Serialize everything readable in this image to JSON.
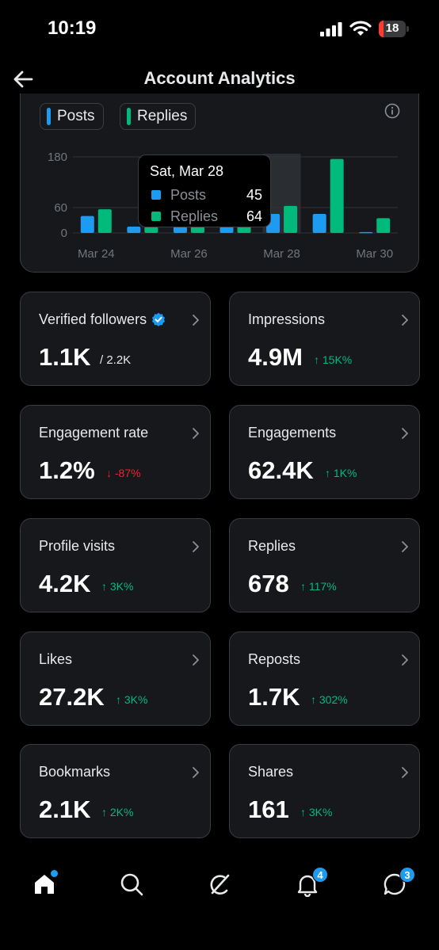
{
  "status_bar": {
    "time": "10:19",
    "battery_level": "18",
    "battery_percent": 18
  },
  "header": {
    "title": "Account Analytics"
  },
  "chart": {
    "legend": [
      {
        "label": "Posts",
        "color": "#1d9bf0"
      },
      {
        "label": "Replies",
        "color": "#00ba7c"
      }
    ],
    "tooltip": {
      "title": "Sat, Mar 28",
      "rows": [
        {
          "label": "Posts",
          "value": "45",
          "color": "#1d9bf0"
        },
        {
          "label": "Replies",
          "value": "64",
          "color": "#00ba7c"
        }
      ]
    }
  },
  "chart_data": {
    "type": "bar",
    "categories": [
      "Mar 24",
      "Mar 25",
      "Mar 26",
      "Mar 27",
      "Mar 28",
      "Mar 29",
      "Mar 30"
    ],
    "series": [
      {
        "name": "Posts",
        "values": [
          40,
          15,
          15,
          15,
          45,
          45,
          2
        ]
      },
      {
        "name": "Replies",
        "values": [
          56,
          15,
          15,
          15,
          64,
          175,
          35
        ]
      }
    ],
    "x_tick_labels": [
      "Mar 24",
      "Mar 26",
      "Mar 28",
      "Mar 30"
    ],
    "y_ticks": [
      0,
      60,
      180
    ],
    "ylim": [
      0,
      180
    ],
    "highlight_category": "Mar 28",
    "grid": true
  },
  "stats": [
    {
      "name": "verified-followers",
      "label": "Verified followers",
      "value": "1.1K",
      "sub": "/ 2.2K",
      "delta": "",
      "trend": "none",
      "verified": true
    },
    {
      "name": "impressions",
      "label": "Impressions",
      "value": "4.9M",
      "delta": "↑ 15K%",
      "trend": "up"
    },
    {
      "name": "engagement-rate",
      "label": "Engagement rate",
      "value": "1.2%",
      "delta": "↓ -87%",
      "trend": "down"
    },
    {
      "name": "engagements",
      "label": "Engagements",
      "value": "62.4K",
      "delta": "↑ 1K%",
      "trend": "up"
    },
    {
      "name": "profile-visits",
      "label": "Profile visits",
      "value": "4.2K",
      "delta": "↑ 3K%",
      "trend": "up"
    },
    {
      "name": "replies",
      "label": "Replies",
      "value": "678",
      "delta": "↑ 117%",
      "trend": "up"
    },
    {
      "name": "likes",
      "label": "Likes",
      "value": "27.2K",
      "delta": "↑ 3K%",
      "trend": "up"
    },
    {
      "name": "reposts",
      "label": "Reposts",
      "value": "1.7K",
      "delta": "↑ 302%",
      "trend": "up"
    },
    {
      "name": "bookmarks",
      "label": "Bookmarks",
      "value": "2.1K",
      "delta": "↑ 2K%",
      "trend": "up"
    },
    {
      "name": "shares",
      "label": "Shares",
      "value": "161",
      "delta": "↑ 3K%",
      "trend": "up"
    }
  ],
  "colors": {
    "up": "#00ba7c",
    "down": "#f4212e",
    "accent": "#1d9bf0"
  },
  "tab_bar": {
    "items": [
      {
        "icon": "home-icon",
        "badge": ""
      },
      {
        "icon": "search-icon",
        "badge": ""
      },
      {
        "icon": "grok-icon",
        "badge": ""
      },
      {
        "icon": "bell-icon",
        "badge": "4"
      },
      {
        "icon": "messages-icon",
        "badge": "3"
      }
    ]
  }
}
